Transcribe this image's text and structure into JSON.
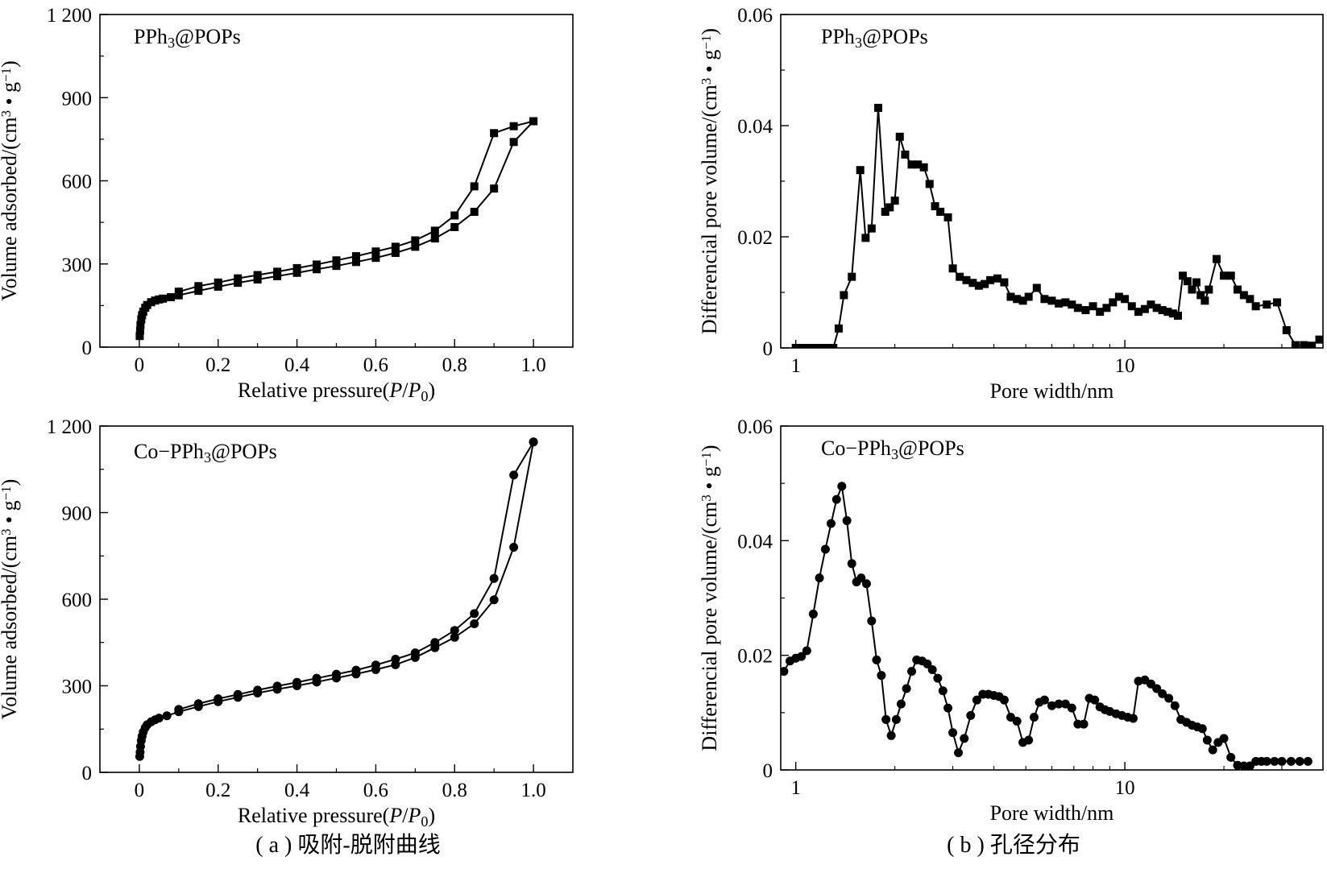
{
  "figure": {
    "caption_a": "( a ) 吸附-脱附曲线",
    "caption_b": "( b ) 孔径分布"
  },
  "chart_data": [
    {
      "id": "a1",
      "type": "line",
      "title": "PPh3@POPs",
      "xlabel": "Relative pressure(P/P0)",
      "ylabel": "Volume adsorbed/(cm3 • g−1)",
      "xlim": [
        -0.1,
        1.1
      ],
      "ylim": [
        0,
        1200
      ],
      "xticks": [
        0,
        0.2,
        0.4,
        0.6,
        0.8,
        1.0
      ],
      "xtick_labels": [
        "0",
        "0.2",
        "0.4",
        "0.6",
        "0.8",
        "1.0"
      ],
      "yticks": [
        0,
        300,
        600,
        900,
        1200
      ],
      "ytick_labels": [
        "0",
        "300",
        "600",
        "900",
        "1 200"
      ],
      "xscale": "linear",
      "marker": "square",
      "grid": false,
      "series": [
        {
          "x": [
            0.001,
            0.002,
            0.003,
            0.005,
            0.007,
            0.01,
            0.015,
            0.02,
            0.03,
            0.04,
            0.05,
            0.06,
            0.08,
            0.1,
            0.15,
            0.2,
            0.25,
            0.3,
            0.35,
            0.4,
            0.45,
            0.5,
            0.55,
            0.6,
            0.65,
            0.7,
            0.75,
            0.8,
            0.85,
            0.9,
            0.95,
            1.0
          ],
          "y": [
            40,
            60,
            80,
            100,
            115,
            128,
            142,
            152,
            162,
            168,
            172,
            175,
            180,
            187,
            203,
            218,
            232,
            244,
            256,
            268,
            281,
            293,
            307,
            322,
            340,
            362,
            392,
            433,
            488,
            572,
            740,
            815
          ]
        },
        {
          "x": [
            1.0,
            0.95,
            0.9,
            0.85,
            0.8,
            0.75,
            0.7,
            0.65,
            0.6,
            0.55,
            0.5,
            0.45,
            0.4,
            0.35,
            0.3,
            0.25,
            0.2,
            0.15,
            0.1
          ],
          "y": [
            815,
            797,
            772,
            580,
            475,
            420,
            385,
            362,
            345,
            328,
            313,
            298,
            285,
            272,
            260,
            248,
            233,
            220,
            200
          ]
        }
      ]
    },
    {
      "id": "b1",
      "type": "line",
      "title": "PPh3@POPs",
      "xlabel": "Pore width/nm",
      "ylabel": "Differencial pore volume/(cm3 • g−1)",
      "xlim": [
        0.9,
        40
      ],
      "ylim": [
        0,
        0.06
      ],
      "xticks": [
        1,
        10
      ],
      "xtick_labels": [
        "1",
        "10"
      ],
      "yticks": [
        0,
        0.02,
        0.04,
        0.06
      ],
      "ytick_labels": [
        "0",
        "0.02",
        "0.04",
        "0.06"
      ],
      "xscale": "log",
      "marker": "square",
      "grid": false,
      "series": [
        {
          "x": [
            1.0,
            1.05,
            1.1,
            1.15,
            1.2,
            1.25,
            1.3,
            1.35,
            1.4,
            1.48,
            1.57,
            1.63,
            1.7,
            1.78,
            1.87,
            1.93,
            2.0,
            2.07,
            2.15,
            2.25,
            2.35,
            2.45,
            2.55,
            2.65,
            2.75,
            2.9,
            3.0,
            3.15,
            3.3,
            3.45,
            3.6,
            3.75,
            3.9,
            4.1,
            4.3,
            4.5,
            4.7,
            4.9,
            5.1,
            5.4,
            5.7,
            6.0,
            6.3,
            6.6,
            6.9,
            7.2,
            7.6,
            8.0,
            8.4,
            8.8,
            9.2,
            9.6,
            10.0,
            10.5,
            11.0,
            11.5,
            12.0,
            12.5,
            13.0,
            13.5,
            14.0,
            14.5,
            15.0,
            15.5,
            16.0,
            16.5,
            17.0,
            17.5,
            18.0,
            19.0,
            20.0,
            21.0,
            22.0,
            23.0,
            24.0,
            25.0,
            27.0,
            29.0,
            31.0,
            33.0,
            35.0,
            37.0,
            39.0
          ],
          "y": [
            0,
            0,
            0,
            0,
            0,
            0,
            0,
            0.0035,
            0.0095,
            0.0128,
            0.032,
            0.0198,
            0.0215,
            0.0432,
            0.0245,
            0.0253,
            0.0265,
            0.038,
            0.0348,
            0.033,
            0.033,
            0.0325,
            0.0295,
            0.0255,
            0.0245,
            0.0235,
            0.0143,
            0.0128,
            0.0122,
            0.0117,
            0.0112,
            0.0115,
            0.0122,
            0.0125,
            0.0118,
            0.0092,
            0.0088,
            0.0085,
            0.0092,
            0.0108,
            0.0088,
            0.0085,
            0.008,
            0.0082,
            0.0078,
            0.0072,
            0.0068,
            0.0075,
            0.0065,
            0.0072,
            0.0082,
            0.0092,
            0.0088,
            0.0075,
            0.0065,
            0.007,
            0.0078,
            0.0072,
            0.0068,
            0.0065,
            0.0062,
            0.0058,
            0.013,
            0.012,
            0.0105,
            0.0118,
            0.0095,
            0.0085,
            0.0105,
            0.016,
            0.013,
            0.013,
            0.0105,
            0.0095,
            0.0088,
            0.0075,
            0.0078,
            0.0082,
            0.0032,
            0.0005,
            0.0005,
            0.0004,
            0.0015
          ]
        }
      ]
    },
    {
      "id": "a2",
      "type": "line",
      "title": "Co−PPh3@POPs",
      "xlabel": "Relative pressure(P/P0)",
      "ylabel": "Volume adsorbed/(cm3 • g−1)",
      "xlim": [
        -0.1,
        1.1
      ],
      "ylim": [
        0,
        1200
      ],
      "xticks": [
        0,
        0.2,
        0.4,
        0.6,
        0.8,
        1.0
      ],
      "xtick_labels": [
        "0",
        "0.2",
        "0.4",
        "0.6",
        "0.8",
        "1.0"
      ],
      "yticks": [
        0,
        300,
        600,
        900,
        1200
      ],
      "ytick_labels": [
        "0",
        "300",
        "600",
        "900",
        "1 200"
      ],
      "xscale": "linear",
      "marker": "circle",
      "grid": false,
      "series": [
        {
          "x": [
            0.001,
            0.002,
            0.003,
            0.005,
            0.007,
            0.01,
            0.015,
            0.02,
            0.03,
            0.04,
            0.05,
            0.07,
            0.1,
            0.15,
            0.2,
            0.25,
            0.3,
            0.35,
            0.4,
            0.45,
            0.5,
            0.55,
            0.6,
            0.65,
            0.7,
            0.75,
            0.8,
            0.85,
            0.9,
            0.95,
            1.0
          ],
          "y": [
            55,
            70,
            90,
            110,
            125,
            140,
            155,
            165,
            175,
            182,
            188,
            196,
            210,
            228,
            245,
            260,
            275,
            288,
            300,
            313,
            327,
            341,
            356,
            373,
            398,
            432,
            468,
            515,
            598,
            780,
            1145
          ]
        },
        {
          "x": [
            1.0,
            0.95,
            0.9,
            0.85,
            0.8,
            0.75,
            0.7,
            0.65,
            0.6,
            0.55,
            0.5,
            0.45,
            0.4,
            0.35,
            0.3,
            0.25,
            0.2,
            0.15,
            0.1
          ],
          "y": [
            1145,
            1030,
            672,
            550,
            492,
            450,
            414,
            392,
            372,
            354,
            340,
            326,
            312,
            299,
            285,
            270,
            255,
            238,
            218
          ]
        }
      ]
    },
    {
      "id": "b2",
      "type": "line",
      "title": "Co−PPh3@POPs",
      "xlabel": "Pore width/nm",
      "ylabel": "Differencial pore volume/(cm3 • g−1)",
      "xlim": [
        0.9,
        40
      ],
      "ylim": [
        0,
        0.06
      ],
      "xticks": [
        1,
        10
      ],
      "xtick_labels": [
        "1",
        "10"
      ],
      "yticks": [
        0,
        0.02,
        0.04,
        0.06
      ],
      "ytick_labels": [
        "0",
        "0.02",
        "0.04",
        "0.06"
      ],
      "xscale": "log",
      "marker": "circle",
      "grid": false,
      "series": [
        {
          "x": [
            0.92,
            0.96,
            1.0,
            1.04,
            1.08,
            1.13,
            1.18,
            1.23,
            1.28,
            1.33,
            1.38,
            1.43,
            1.48,
            1.53,
            1.58,
            1.64,
            1.7,
            1.76,
            1.82,
            1.88,
            1.95,
            2.02,
            2.09,
            2.17,
            2.25,
            2.33,
            2.42,
            2.51,
            2.6,
            2.7,
            2.8,
            2.9,
            3.0,
            3.12,
            3.25,
            3.4,
            3.55,
            3.7,
            3.85,
            4.0,
            4.15,
            4.3,
            4.5,
            4.7,
            4.9,
            5.1,
            5.3,
            5.5,
            5.7,
            6.0,
            6.3,
            6.6,
            6.9,
            7.2,
            7.5,
            7.8,
            8.1,
            8.4,
            8.7,
            9.0,
            9.4,
            9.8,
            10.2,
            10.6,
            11.0,
            11.5,
            12.0,
            12.5,
            13.0,
            13.6,
            14.2,
            14.8,
            15.4,
            16.0,
            16.6,
            17.2,
            17.8,
            18.5,
            19.2,
            20.0,
            21.0,
            22.0,
            23.0,
            24.0,
            25.0,
            26.0,
            27.0,
            28.5,
            30.0,
            32.0,
            34.0,
            36.0
          ],
          "y": [
            0.0172,
            0.019,
            0.0195,
            0.0198,
            0.0208,
            0.0272,
            0.0335,
            0.0385,
            0.043,
            0.0472,
            0.0495,
            0.0435,
            0.036,
            0.0328,
            0.0335,
            0.0325,
            0.026,
            0.0192,
            0.0165,
            0.0088,
            0.006,
            0.0088,
            0.0115,
            0.0142,
            0.0172,
            0.0192,
            0.019,
            0.0185,
            0.0175,
            0.016,
            0.0138,
            0.0108,
            0.0065,
            0.003,
            0.0055,
            0.0095,
            0.0122,
            0.0132,
            0.0132,
            0.013,
            0.0128,
            0.0122,
            0.0092,
            0.0085,
            0.0048,
            0.0052,
            0.0092,
            0.0118,
            0.0122,
            0.0112,
            0.0115,
            0.0115,
            0.0108,
            0.008,
            0.008,
            0.0125,
            0.0122,
            0.011,
            0.0105,
            0.0102,
            0.0098,
            0.0095,
            0.0092,
            0.009,
            0.0155,
            0.0157,
            0.015,
            0.0142,
            0.0133,
            0.0125,
            0.0112,
            0.0088,
            0.0083,
            0.0078,
            0.0075,
            0.0072,
            0.0052,
            0.0035,
            0.0048,
            0.0055,
            0.0022,
            0.0008,
            0.0007,
            0.0007,
            0.0015,
            0.0015,
            0.0015,
            0.0015,
            0.0015,
            0.0015,
            0.0015,
            0.0015
          ]
        }
      ]
    }
  ]
}
